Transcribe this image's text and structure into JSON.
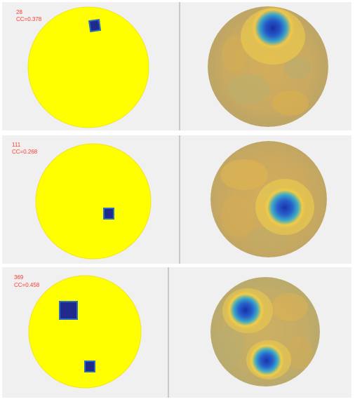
{
  "colors": {
    "panel_bg": "#f0f0f0",
    "label_red": "#ff3b30",
    "truth_fill": "#ffff00",
    "truth_edge": "#f5e51a",
    "inclusion_fill": "#1f2a8c",
    "inclusion_edge": "#2d6fbf",
    "recon_base": "#c8a65a"
  },
  "panels": [
    {
      "id": "28",
      "cc": "CC=0.378"
    },
    {
      "id": "111",
      "cc": "CC=0.268"
    },
    {
      "id": "369",
      "cc": "CC=0.458"
    }
  ]
}
